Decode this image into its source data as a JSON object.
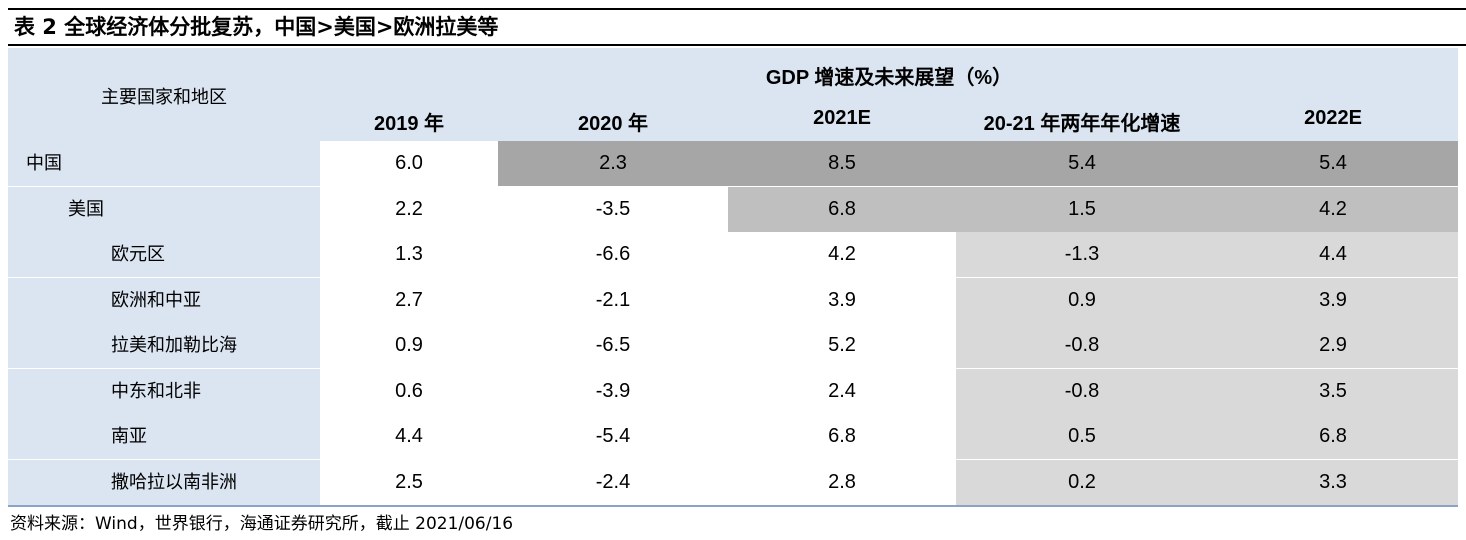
{
  "title": "表 2 全球经济体分批复苏，中国>美国>欧洲拉美等",
  "header": {
    "region_col": "主要国家和地区",
    "group": "GDP 增速及未来展望（%）",
    "columns": [
      "2019 年",
      "2020 年",
      "2021E",
      "20-21 年两年年化增速",
      "2022E"
    ]
  },
  "rows": [
    {
      "label": "中国",
      "indent": 0,
      "values": [
        "6.0",
        "2.3",
        "8.5",
        "5.4",
        "5.4"
      ]
    },
    {
      "label": "美国",
      "indent": 1,
      "values": [
        "2.2",
        "-3.5",
        "6.8",
        "1.5",
        "4.2"
      ]
    },
    {
      "label": "欧元区",
      "indent": 2,
      "values": [
        "1.3",
        "-6.6",
        "4.2",
        "-1.3",
        "4.4"
      ]
    },
    {
      "label": "欧洲和中亚",
      "indent": 2,
      "values": [
        "2.7",
        "-2.1",
        "3.9",
        "0.9",
        "3.9"
      ]
    },
    {
      "label": "拉美和加勒比海",
      "indent": 2,
      "values": [
        "0.9",
        "-6.5",
        "5.2",
        "-0.8",
        "2.9"
      ]
    },
    {
      "label": "中东和北非",
      "indent": 2,
      "values": [
        "0.6",
        "-3.9",
        "2.4",
        "-0.8",
        "3.5"
      ]
    },
    {
      "label": "南亚",
      "indent": 2,
      "values": [
        "4.4",
        "-5.4",
        "6.8",
        "0.5",
        "6.8"
      ]
    },
    {
      "label": "撒哈拉以南非洲",
      "indent": 2,
      "values": [
        "2.5",
        "-2.4",
        "2.8",
        "0.2",
        "3.3"
      ]
    }
  ],
  "source": "资料来源：Wind，世界银行，海通证券研究所，截止 2021/06/16",
  "colors": {
    "header_bg": "#dbe5f1",
    "china_highlight": "#a6a6a6",
    "us_highlight": "#bfbfbf",
    "region_highlight": "#d9d9d9"
  }
}
